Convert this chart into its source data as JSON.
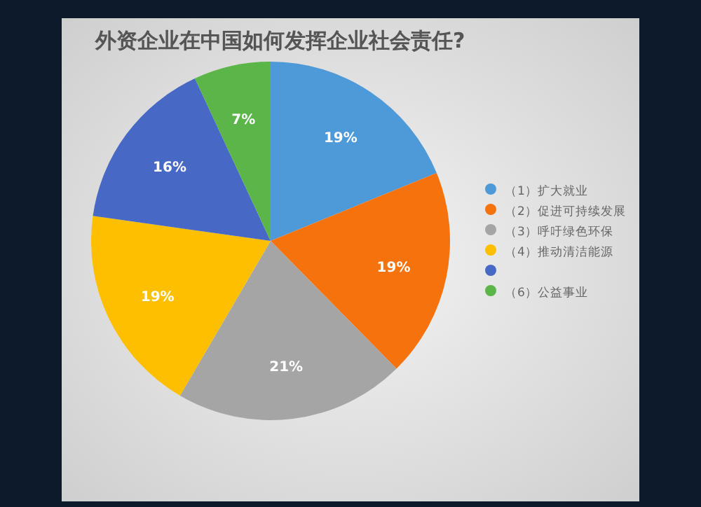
{
  "chart_data": {
    "type": "pie",
    "title": "外资企业在中国如何发挥企业社会责任?",
    "categories": [
      "（1）扩大就业",
      "（2）促进可持续发展",
      "（3）呼吁绿色环保",
      "（4）推动清洁能源",
      null,
      "（6）公益事业"
    ],
    "values": [
      19,
      19,
      21,
      19,
      16,
      7
    ],
    "colors": [
      "#4e9ad8",
      "#f6720c",
      "#a5a5a5",
      "#fdbf00",
      "#4769c5",
      "#5bb548"
    ],
    "value_labels": [
      "19%",
      "19%",
      "21%",
      "19%",
      "16%",
      "7%"
    ],
    "legend": "right"
  }
}
